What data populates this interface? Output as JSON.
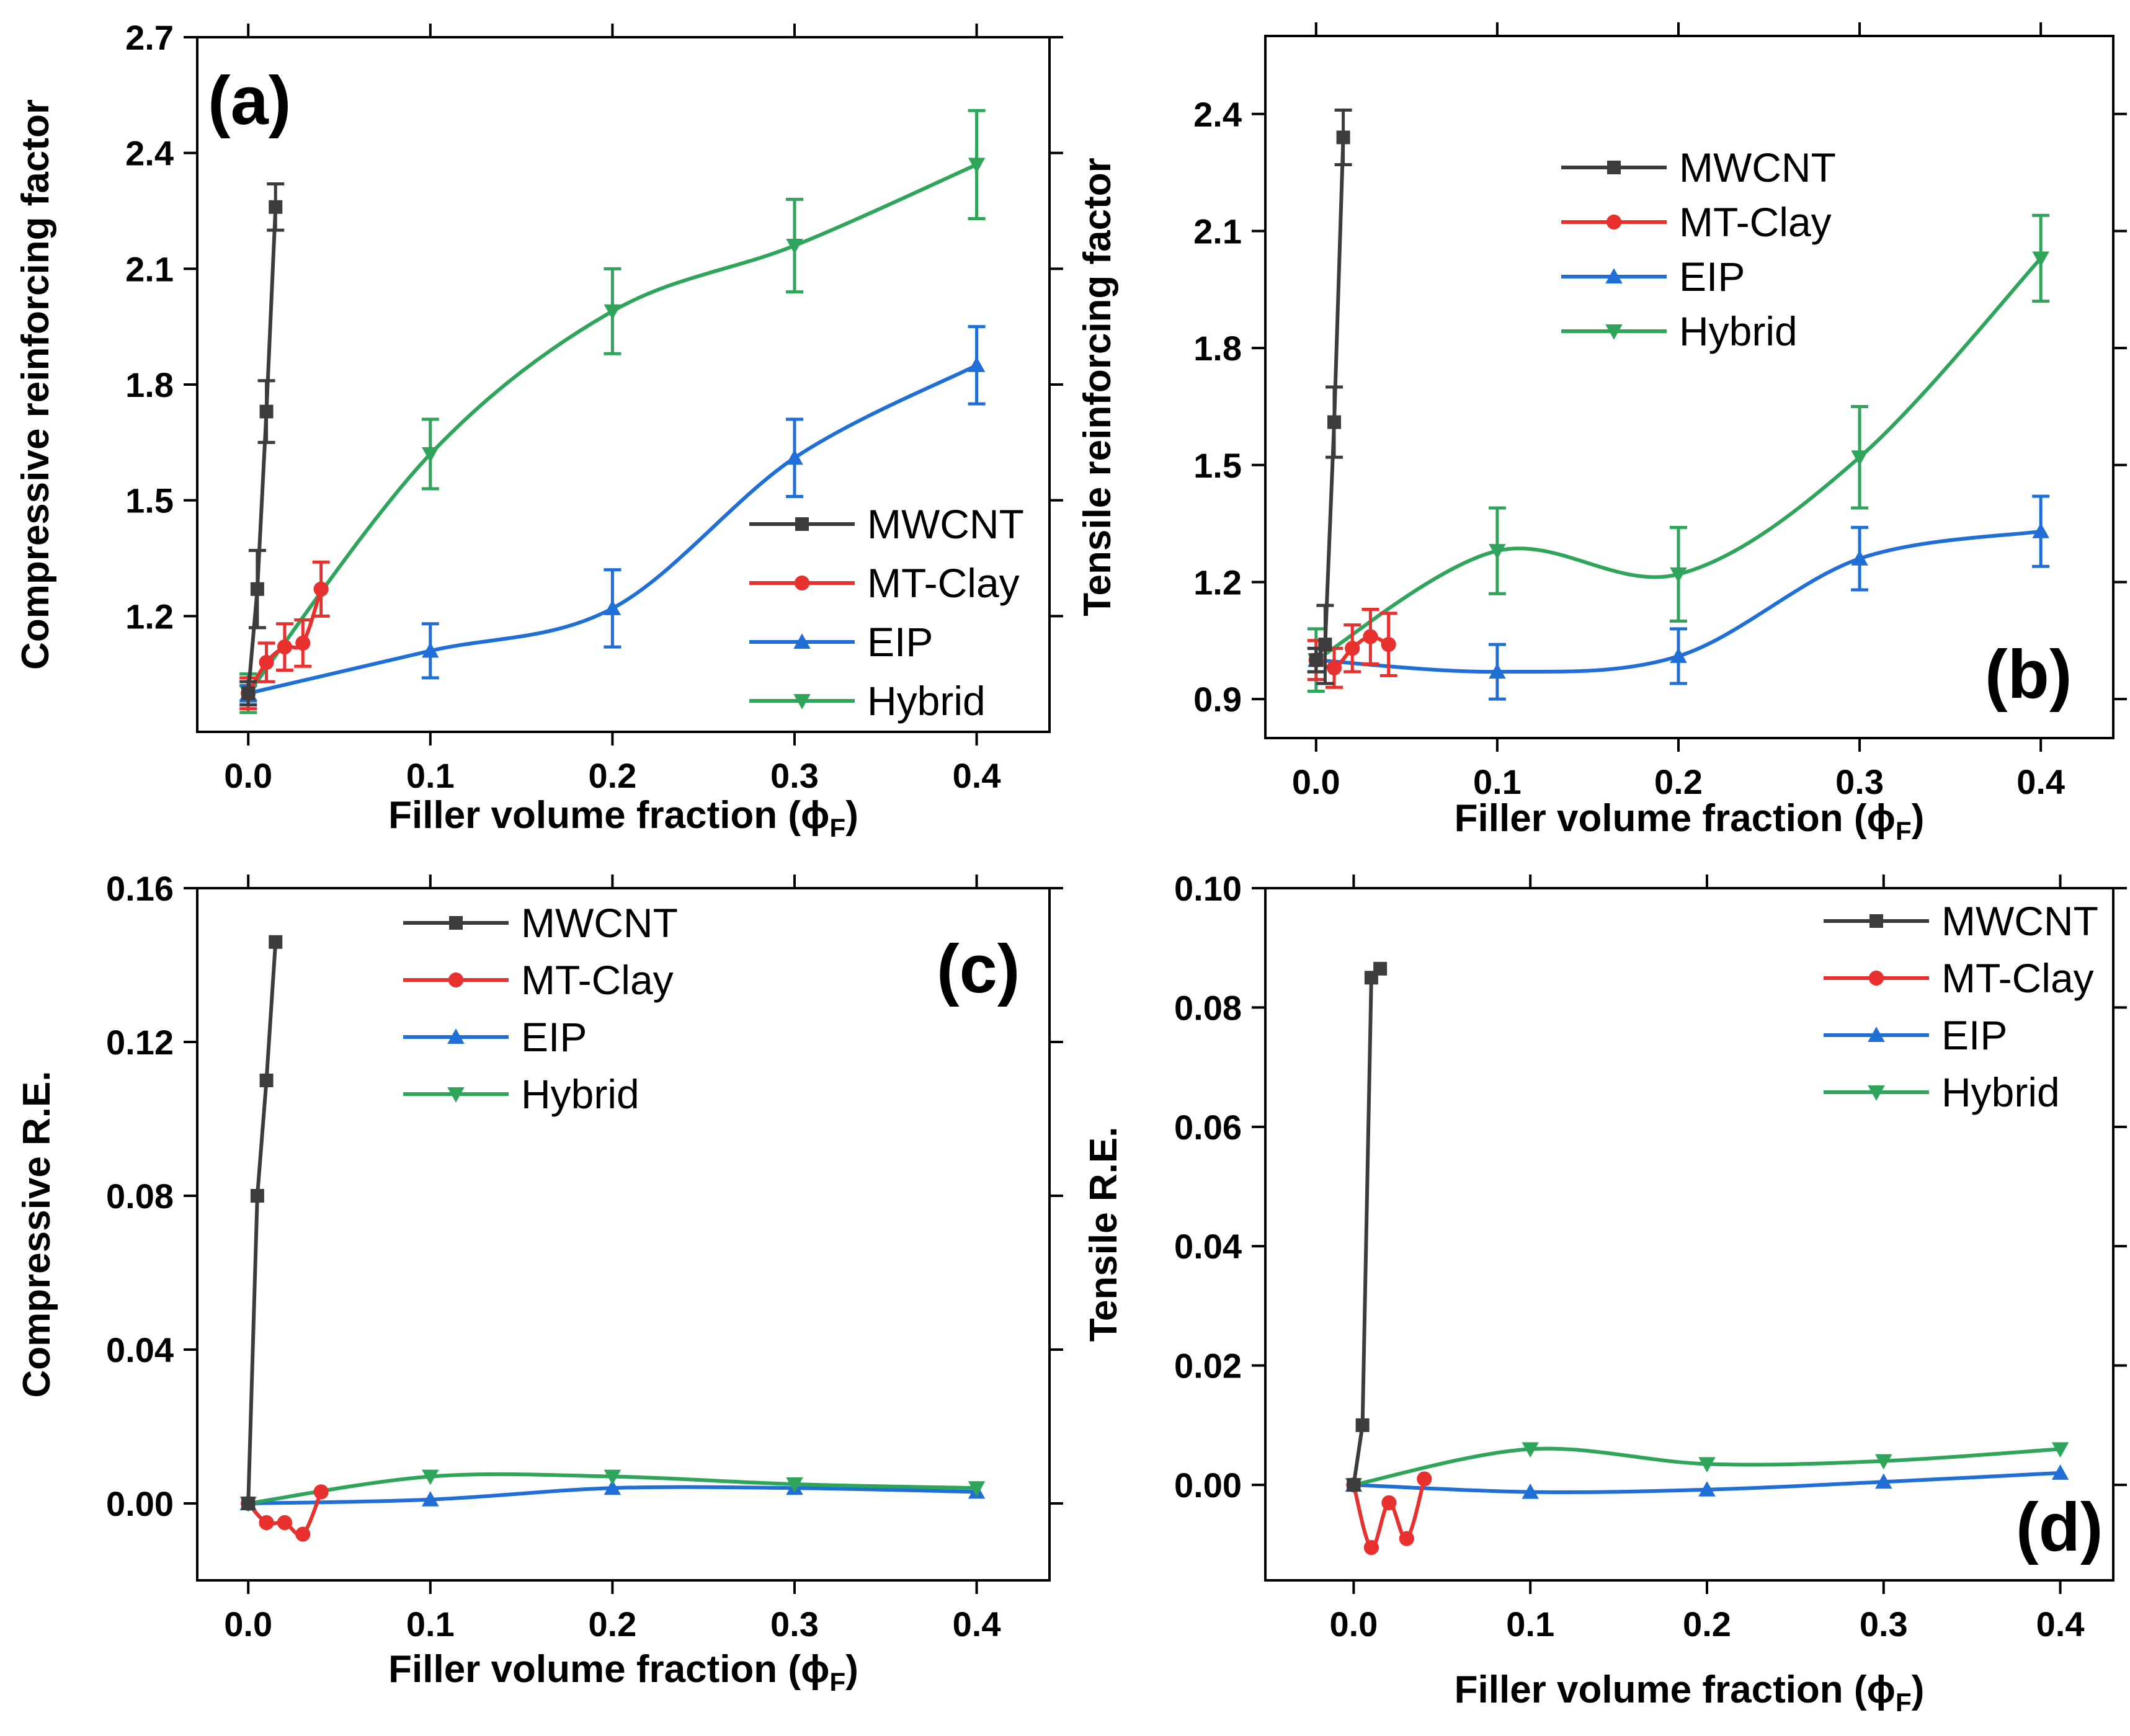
{
  "colors": {
    "MWCNT": "#3c3c3c",
    "MT-Clay": "#e8302f",
    "EIP": "#1f6fd6",
    "Hybrid": "#2ea55a"
  },
  "chart_data": [
    {
      "id": "a",
      "type": "line",
      "panel_label": "(a)",
      "xlabel": "Filler volume fraction (ϕ",
      "xlabel_sub": "F",
      "xlabel_tail": ")",
      "ylabel": "Compressive reinforcing factor",
      "xlim": [
        -0.028,
        0.44
      ],
      "ylim": [
        0.9,
        2.7
      ],
      "xticks": [
        0.0,
        0.1,
        0.2,
        0.3,
        0.4
      ],
      "xtick_labels": [
        "0.0",
        "0.1",
        "0.2",
        "0.3",
        "0.4"
      ],
      "yticks": [
        1.2,
        1.5,
        1.8,
        2.1,
        2.4,
        2.7
      ],
      "ytick_labels": [
        "1.2",
        "1.5",
        "1.8",
        "2.1",
        "2.4",
        "2.7"
      ],
      "legend_position": "bottom-right",
      "series": [
        {
          "name": "MWCNT",
          "marker": "square",
          "x": [
            0,
            0.005,
            0.01,
            0.015
          ],
          "y": [
            1.0,
            1.27,
            1.73,
            2.26
          ],
          "err": [
            0.03,
            0.1,
            0.08,
            0.06
          ]
        },
        {
          "name": "MT-Clay",
          "marker": "circle",
          "x": [
            0,
            0.01,
            0.02,
            0.03,
            0.04
          ],
          "y": [
            1.0,
            1.08,
            1.12,
            1.13,
            1.27
          ],
          "err": [
            0.04,
            0.05,
            0.06,
            0.06,
            0.07
          ]
        },
        {
          "name": "EIP",
          "marker": "triangle-up",
          "x": [
            0,
            0.1,
            0.2,
            0.3,
            0.4
          ],
          "y": [
            1.0,
            1.11,
            1.22,
            1.61,
            1.85
          ],
          "err": [
            0.02,
            0.07,
            0.1,
            0.1,
            0.1
          ]
        },
        {
          "name": "Hybrid",
          "marker": "triangle-down",
          "x": [
            0,
            0.1,
            0.2,
            0.3,
            0.4
          ],
          "y": [
            1.0,
            1.62,
            1.99,
            2.16,
            2.37
          ],
          "err": [
            0.05,
            0.09,
            0.11,
            0.12,
            0.14
          ]
        }
      ]
    },
    {
      "id": "b",
      "type": "line",
      "panel_label": "(b)",
      "xlabel": "Filler volume fraction (ϕ",
      "xlabel_sub": "F",
      "xlabel_tail": ")",
      "ylabel": "Tensile reinforcing factor",
      "xlim": [
        -0.028,
        0.44
      ],
      "ylim": [
        0.8,
        2.6
      ],
      "xticks": [
        0.0,
        0.1,
        0.2,
        0.3,
        0.4
      ],
      "xtick_labels": [
        "0.0",
        "0.1",
        "0.2",
        "0.3",
        "0.4"
      ],
      "yticks": [
        0.9,
        1.2,
        1.5,
        1.8,
        2.1,
        2.4
      ],
      "ytick_labels": [
        "0.9",
        "1.2",
        "1.5",
        "1.8",
        "2.1",
        "2.4"
      ],
      "legend_position": "top-right",
      "series": [
        {
          "name": "MWCNT",
          "marker": "square",
          "x": [
            0,
            0.005,
            0.01,
            0.015
          ],
          "y": [
            1.0,
            1.04,
            1.61,
            2.34
          ],
          "err": [
            0.03,
            0.1,
            0.09,
            0.07
          ]
        },
        {
          "name": "MT-Clay",
          "marker": "circle",
          "x": [
            0,
            0.01,
            0.02,
            0.03,
            0.04
          ],
          "y": [
            1.0,
            0.98,
            1.03,
            1.06,
            1.04
          ],
          "err": [
            0.05,
            0.05,
            0.06,
            0.07,
            0.08
          ]
        },
        {
          "name": "EIP",
          "marker": "triangle-up",
          "x": [
            0,
            0.1,
            0.2,
            0.3,
            0.4
          ],
          "y": [
            1.0,
            0.97,
            1.01,
            1.26,
            1.33
          ],
          "err": [
            0.03,
            0.07,
            0.07,
            0.08,
            0.09
          ]
        },
        {
          "name": "Hybrid",
          "marker": "triangle-down",
          "x": [
            0,
            0.1,
            0.2,
            0.3,
            0.4
          ],
          "y": [
            1.0,
            1.28,
            1.22,
            1.52,
            2.03
          ],
          "err": [
            0.08,
            0.11,
            0.12,
            0.13,
            0.11
          ]
        }
      ]
    },
    {
      "id": "c",
      "type": "line",
      "panel_label": "(c)",
      "xlabel": "Filler volume fraction (ϕ",
      "xlabel_sub": "F",
      "xlabel_tail": ")",
      "ylabel": "Compressive R.E.",
      "xlim": [
        -0.028,
        0.44
      ],
      "ylim": [
        -0.02,
        0.16
      ],
      "xticks": [
        0.0,
        0.1,
        0.2,
        0.3,
        0.4
      ],
      "xtick_labels": [
        "0.0",
        "0.1",
        "0.2",
        "0.3",
        "0.4"
      ],
      "yticks": [
        0.0,
        0.04,
        0.08,
        0.12,
        0.16
      ],
      "ytick_labels": [
        "0.00",
        "0.04",
        "0.08",
        "0.12",
        "0.16"
      ],
      "legend_position": "top-center",
      "series": [
        {
          "name": "MWCNT",
          "marker": "square",
          "x": [
            0,
            0.005,
            0.01,
            0.015
          ],
          "y": [
            0.0,
            0.08,
            0.11,
            0.146
          ]
        },
        {
          "name": "MT-Clay",
          "marker": "circle",
          "x": [
            0,
            0.01,
            0.02,
            0.03,
            0.04
          ],
          "y": [
            0.0,
            -0.005,
            -0.005,
            -0.008,
            0.003
          ]
        },
        {
          "name": "EIP",
          "marker": "triangle-up",
          "x": [
            0,
            0.1,
            0.2,
            0.3,
            0.4
          ],
          "y": [
            0.0,
            0.001,
            0.004,
            0.004,
            0.003
          ]
        },
        {
          "name": "Hybrid",
          "marker": "triangle-down",
          "x": [
            0,
            0.1,
            0.2,
            0.3,
            0.4
          ],
          "y": [
            0.0,
            0.007,
            0.007,
            0.005,
            0.004
          ]
        }
      ]
    },
    {
      "id": "d",
      "type": "line",
      "panel_label": "(d)",
      "xlabel": "Filler volume fraction (ϕ",
      "xlabel_sub": "F",
      "xlabel_tail": ")",
      "ylabel": "Tensile R.E.",
      "xlim": [
        -0.05,
        0.43
      ],
      "ylim": [
        -0.016,
        0.1
      ],
      "xticks": [
        0.0,
        0.1,
        0.2,
        0.3,
        0.4
      ],
      "xtick_labels": [
        "0.0",
        "0.1",
        "0.2",
        "0.3",
        "0.4"
      ],
      "yticks": [
        0.0,
        0.02,
        0.04,
        0.06,
        0.08,
        0.1
      ],
      "ytick_labels": [
        "0.00",
        "0.02",
        "0.04",
        "0.06",
        "0.08",
        "0.10"
      ],
      "legend_position": "top-right",
      "series": [
        {
          "name": "MWCNT",
          "marker": "square",
          "x": [
            0,
            0.005,
            0.01,
            0.015
          ],
          "y": [
            0.0,
            0.01,
            0.085,
            0.0865
          ]
        },
        {
          "name": "MT-Clay",
          "marker": "circle",
          "x": [
            0,
            0.01,
            0.02,
            0.03,
            0.04
          ],
          "y": [
            0.0,
            -0.0105,
            -0.003,
            -0.009,
            0.001
          ]
        },
        {
          "name": "EIP",
          "marker": "triangle-up",
          "x": [
            0,
            0.1,
            0.2,
            0.3,
            0.4
          ],
          "y": [
            0.0,
            -0.0012,
            -0.0008,
            0.0005,
            0.002
          ]
        },
        {
          "name": "Hybrid",
          "marker": "triangle-down",
          "x": [
            0,
            0.1,
            0.2,
            0.3,
            0.4
          ],
          "y": [
            0.0,
            0.006,
            0.0035,
            0.004,
            0.006
          ]
        }
      ]
    }
  ]
}
